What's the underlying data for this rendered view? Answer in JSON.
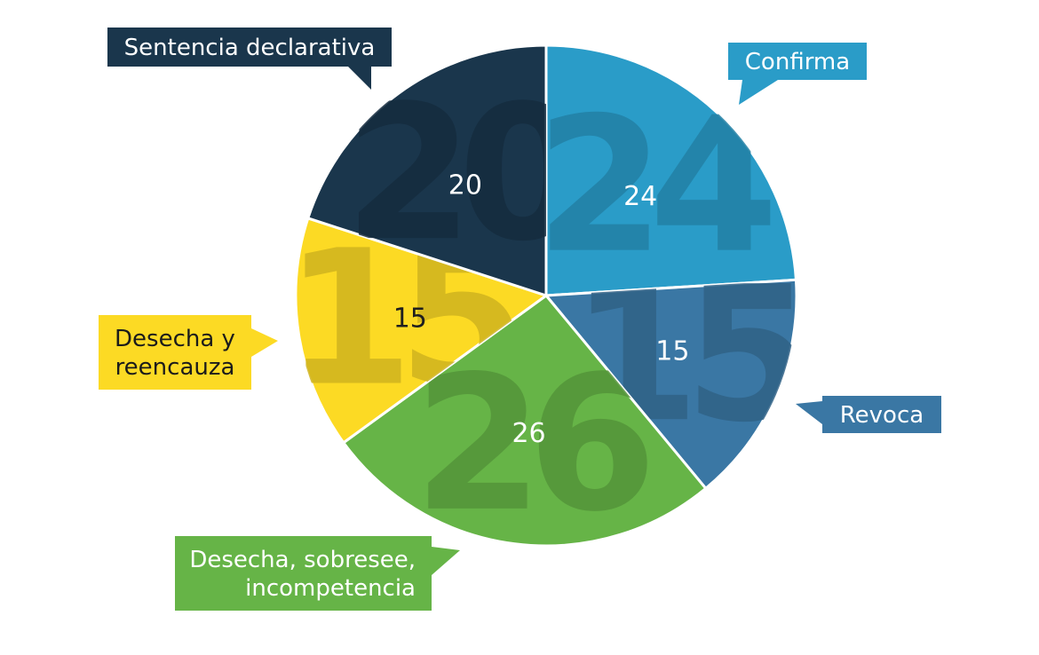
{
  "chart_data": {
    "type": "pie",
    "title": "",
    "slices": [
      {
        "label": "Confirma",
        "label_lines": [
          "Confirma"
        ],
        "value": 24,
        "color": "#2a9cc8"
      },
      {
        "label": "Revoca",
        "label_lines": [
          "Revoca"
        ],
        "value": 15,
        "color": "#3a77a4"
      },
      {
        "label": "Desecha, sobresee, incompetencia",
        "label_lines": [
          "Desecha, sobresee,",
          "incompetencia"
        ],
        "value": 26,
        "color": "#66b447"
      },
      {
        "label": "Desecha y reencauza",
        "label_lines": [
          "Desecha y",
          "reencauza"
        ],
        "value": 15,
        "color": "#fcda24"
      },
      {
        "label": "Sentencia declarativa",
        "label_lines": [
          "Sentencia declarativa"
        ],
        "value": 20,
        "color": "#1a364c"
      }
    ],
    "start_angle_deg": -90,
    "direction": "clockwise",
    "legend": "callouts"
  }
}
